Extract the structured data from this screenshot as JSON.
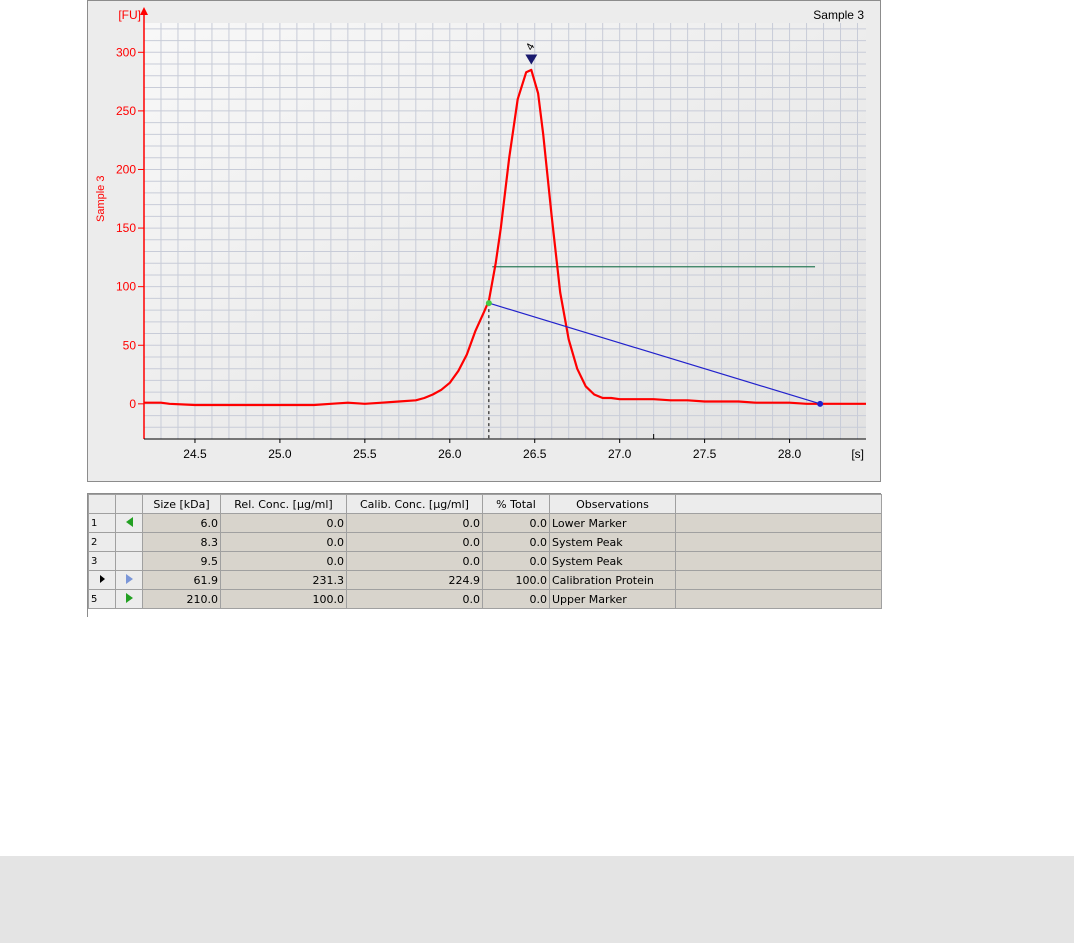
{
  "chart_data": {
    "type": "line",
    "title": "Sample 3",
    "ylabel": "Sample 3",
    "y_unit": "[FU]",
    "x_unit": "[s]",
    "xlim": [
      24.2,
      28.45
    ],
    "ylim": [
      -30,
      325
    ],
    "x_ticks": [
      24.5,
      25.0,
      25.5,
      26.0,
      26.5,
      27.0,
      27.5,
      28.0
    ],
    "x_tick_labels": [
      "24.5",
      "25.0",
      "25.5",
      "26.0",
      "26.5",
      "27.0",
      "27.5",
      "28.0"
    ],
    "y_ticks": [
      0,
      50,
      100,
      150,
      200,
      250,
      300
    ],
    "y_tick_labels": [
      "0",
      "50",
      "100",
      "150",
      "200",
      "250",
      "300"
    ],
    "grid": true,
    "series": [
      {
        "color": "#ff0000",
        "x": [
          24.2,
          24.3,
          24.35,
          24.5,
          24.75,
          25.0,
          25.2,
          25.3,
          25.4,
          25.5,
          25.6,
          25.7,
          25.8,
          25.85,
          25.9,
          25.95,
          26.0,
          26.05,
          26.1,
          26.15,
          26.2,
          26.23,
          26.27,
          26.3,
          26.35,
          26.4,
          26.45,
          26.48,
          26.52,
          26.55,
          26.6,
          26.65,
          26.7,
          26.75,
          26.8,
          26.85,
          26.9,
          26.95,
          27.0,
          27.1,
          27.2,
          27.3,
          27.4,
          27.5,
          27.6,
          27.7,
          27.8,
          27.9,
          28.0,
          28.1,
          28.2,
          28.3,
          28.45
        ],
        "y": [
          1,
          1,
          0,
          -1,
          -1,
          -1,
          -1,
          0,
          1,
          0,
          1,
          2,
          3,
          5,
          8,
          12,
          18,
          28,
          42,
          62,
          78,
          88,
          120,
          150,
          210,
          260,
          283,
          285,
          265,
          230,
          160,
          95,
          55,
          30,
          15,
          8,
          5,
          5,
          4,
          4,
          4,
          3,
          3,
          2,
          2,
          2,
          1,
          1,
          1,
          0,
          0,
          0,
          0
        ]
      }
    ],
    "peak_marker": {
      "x": 26.48,
      "y": 293,
      "label": "4"
    },
    "baseline": {
      "x": [
        26.23,
        28.18
      ],
      "y": [
        86,
        0
      ],
      "color": "#2222cc"
    },
    "threshold_line": {
      "x": [
        26.25,
        28.15
      ],
      "y": [
        117,
        117
      ],
      "color": "#2e7d5b"
    },
    "start_point": {
      "x": 26.23,
      "y": 86,
      "color": "#44cc44"
    },
    "end_point": {
      "x": 28.18,
      "y": 0,
      "color": "#2222cc"
    },
    "start_dashed_x": 26.23
  },
  "table": {
    "headers": [
      "",
      "",
      "Size [kDa]",
      "Rel. Conc. [µg/ml]",
      "Calib. Conc. [µg/ml]",
      "% Total",
      "Observations",
      ""
    ],
    "rows": [
      {
        "num": "1",
        "icon": "left-green",
        "size": "6.0",
        "rel": "0.0",
        "calib": "0.0",
        "pct": "0.0",
        "obs": "Lower Marker"
      },
      {
        "num": "2",
        "icon": "",
        "size": "8.3",
        "rel": "0.0",
        "calib": "0.0",
        "pct": "0.0",
        "obs": "System Peak"
      },
      {
        "num": "3",
        "icon": "",
        "size": "9.5",
        "rel": "0.0",
        "calib": "0.0",
        "pct": "0.0",
        "obs": "System Peak"
      },
      {
        "num": "",
        "icon": "right-blue",
        "current": true,
        "size": "61.9",
        "rel": "231.3",
        "calib": "224.9",
        "pct": "100.0",
        "obs": "Calibration Protein"
      },
      {
        "num": "5",
        "icon": "right-green",
        "size": "210.0",
        "rel": "100.0",
        "calib": "0.0",
        "pct": "0.0",
        "obs": "Upper Marker"
      }
    ]
  }
}
